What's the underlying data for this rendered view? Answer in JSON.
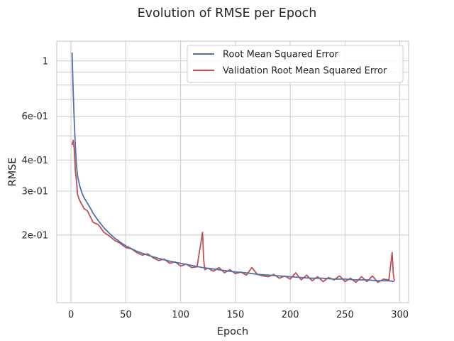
{
  "chart_data": {
    "type": "line",
    "title": "Evolution of RMSE per Epoch",
    "xlabel": "Epoch",
    "ylabel": "RMSE",
    "xlim": [
      -13,
      308
    ],
    "ylim": [
      0.107,
      1.2
    ],
    "yscale": "log",
    "grid": true,
    "legend_position": "top-right",
    "x_ticks": [
      {
        "value": 0,
        "label": "0"
      },
      {
        "value": 50,
        "label": "50"
      },
      {
        "value": 100,
        "label": "100"
      },
      {
        "value": 150,
        "label": "150"
      },
      {
        "value": 200,
        "label": "200"
      },
      {
        "value": 250,
        "label": "250"
      },
      {
        "value": 300,
        "label": "300"
      }
    ],
    "y_ticks": [
      {
        "value": 1.0,
        "label": "1"
      },
      {
        "value": 0.6,
        "label": "6e-01"
      },
      {
        "value": 0.4,
        "label": "4e-01"
      },
      {
        "value": 0.3,
        "label": "3e-01"
      },
      {
        "value": 0.2,
        "label": "2e-01"
      }
    ],
    "y_minor_gridlines": [
      0.9,
      0.8,
      0.7,
      0.5
    ],
    "series": [
      {
        "name": "Root Mean Squared Error",
        "color": "#4c72b0",
        "x": [
          1,
          2,
          3,
          4,
          5,
          6,
          8,
          10,
          12,
          15,
          18,
          20,
          25,
          30,
          35,
          40,
          45,
          50,
          60,
          70,
          80,
          90,
          100,
          110,
          120,
          130,
          140,
          150,
          160,
          170,
          180,
          190,
          200,
          210,
          220,
          230,
          240,
          250,
          260,
          270,
          280,
          290,
          295
        ],
        "y": [
          1.08,
          0.75,
          0.57,
          0.45,
          0.38,
          0.345,
          0.315,
          0.295,
          0.282,
          0.268,
          0.255,
          0.245,
          0.228,
          0.214,
          0.203,
          0.194,
          0.187,
          0.181,
          0.172,
          0.166,
          0.161,
          0.157,
          0.154,
          0.151,
          0.148,
          0.146,
          0.144,
          0.142,
          0.141,
          0.139,
          0.138,
          0.137,
          0.136,
          0.135,
          0.134,
          0.134,
          0.133,
          0.133,
          0.132,
          0.132,
          0.131,
          0.131,
          0.13
        ]
      },
      {
        "name": "Validation Root Mean Squared Error",
        "color": "#c44e52",
        "x": [
          1,
          2,
          3,
          4,
          5,
          6,
          8,
          10,
          12,
          15,
          18,
          20,
          25,
          30,
          35,
          40,
          45,
          50,
          55,
          60,
          65,
          70,
          75,
          80,
          85,
          90,
          95,
          100,
          105,
          110,
          115,
          120,
          121,
          122,
          125,
          130,
          135,
          140,
          145,
          150,
          155,
          160,
          165,
          170,
          175,
          180,
          185,
          190,
          195,
          200,
          205,
          210,
          215,
          220,
          225,
          230,
          235,
          240,
          245,
          250,
          255,
          260,
          265,
          270,
          275,
          280,
          285,
          290,
          293,
          294,
          295
        ],
        "y": [
          0.46,
          0.48,
          0.44,
          0.36,
          0.33,
          0.29,
          0.275,
          0.265,
          0.255,
          0.25,
          0.235,
          0.225,
          0.22,
          0.205,
          0.198,
          0.19,
          0.185,
          0.178,
          0.176,
          0.17,
          0.166,
          0.168,
          0.162,
          0.158,
          0.16,
          0.154,
          0.156,
          0.15,
          0.153,
          0.148,
          0.149,
          0.205,
          0.16,
          0.145,
          0.147,
          0.143,
          0.148,
          0.141,
          0.145,
          0.14,
          0.142,
          0.138,
          0.148,
          0.139,
          0.137,
          0.136,
          0.139,
          0.134,
          0.137,
          0.133,
          0.141,
          0.132,
          0.138,
          0.131,
          0.136,
          0.13,
          0.135,
          0.132,
          0.137,
          0.13,
          0.134,
          0.129,
          0.136,
          0.13,
          0.137,
          0.129,
          0.133,
          0.132,
          0.17,
          0.14,
          0.131
        ]
      }
    ]
  }
}
